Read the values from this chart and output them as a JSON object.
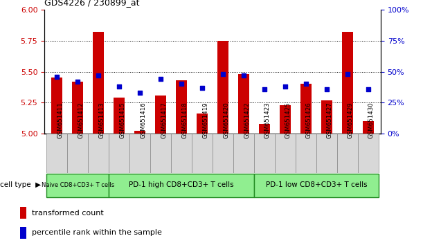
{
  "title": "GDS4226 / 230899_at",
  "samples": [
    "GSM651411",
    "GSM651412",
    "GSM651413",
    "GSM651415",
    "GSM651416",
    "GSM651417",
    "GSM651418",
    "GSM651419",
    "GSM651420",
    "GSM651422",
    "GSM651423",
    "GSM651425",
    "GSM651426",
    "GSM651427",
    "GSM651429",
    "GSM651430"
  ],
  "red_values": [
    5.45,
    5.42,
    5.82,
    5.29,
    5.02,
    5.31,
    5.43,
    5.16,
    5.75,
    5.48,
    5.08,
    5.23,
    5.4,
    5.27,
    5.82,
    5.1
  ],
  "blue_values": [
    46,
    42,
    47,
    38,
    33,
    44,
    40,
    37,
    48,
    47,
    36,
    38,
    40,
    36,
    48,
    36
  ],
  "ylim_left": [
    5.0,
    6.0
  ],
  "ylim_right": [
    0,
    100
  ],
  "yticks_left": [
    5.0,
    5.25,
    5.5,
    5.75,
    6.0
  ],
  "yticks_right": [
    0,
    25,
    50,
    75,
    100
  ],
  "group_starts": [
    0,
    3,
    10
  ],
  "group_ends": [
    3,
    10,
    16
  ],
  "group_labels": [
    "Naive CD8+CD3+ T cells",
    "PD-1 high CD8+CD3+ T cells",
    "PD-1 low CD8+CD3+ T cells"
  ],
  "cell_type_label": "cell type",
  "legend_red": "transformed count",
  "legend_blue": "percentile rank within the sample",
  "bar_color": "#cc0000",
  "dot_color": "#0000cc",
  "bar_width": 0.55,
  "background_color": "#ffffff",
  "tick_color_left": "#cc0000",
  "tick_color_right": "#0000cc",
  "green_fill": "#90ee90",
  "green_edge": "#228b22"
}
